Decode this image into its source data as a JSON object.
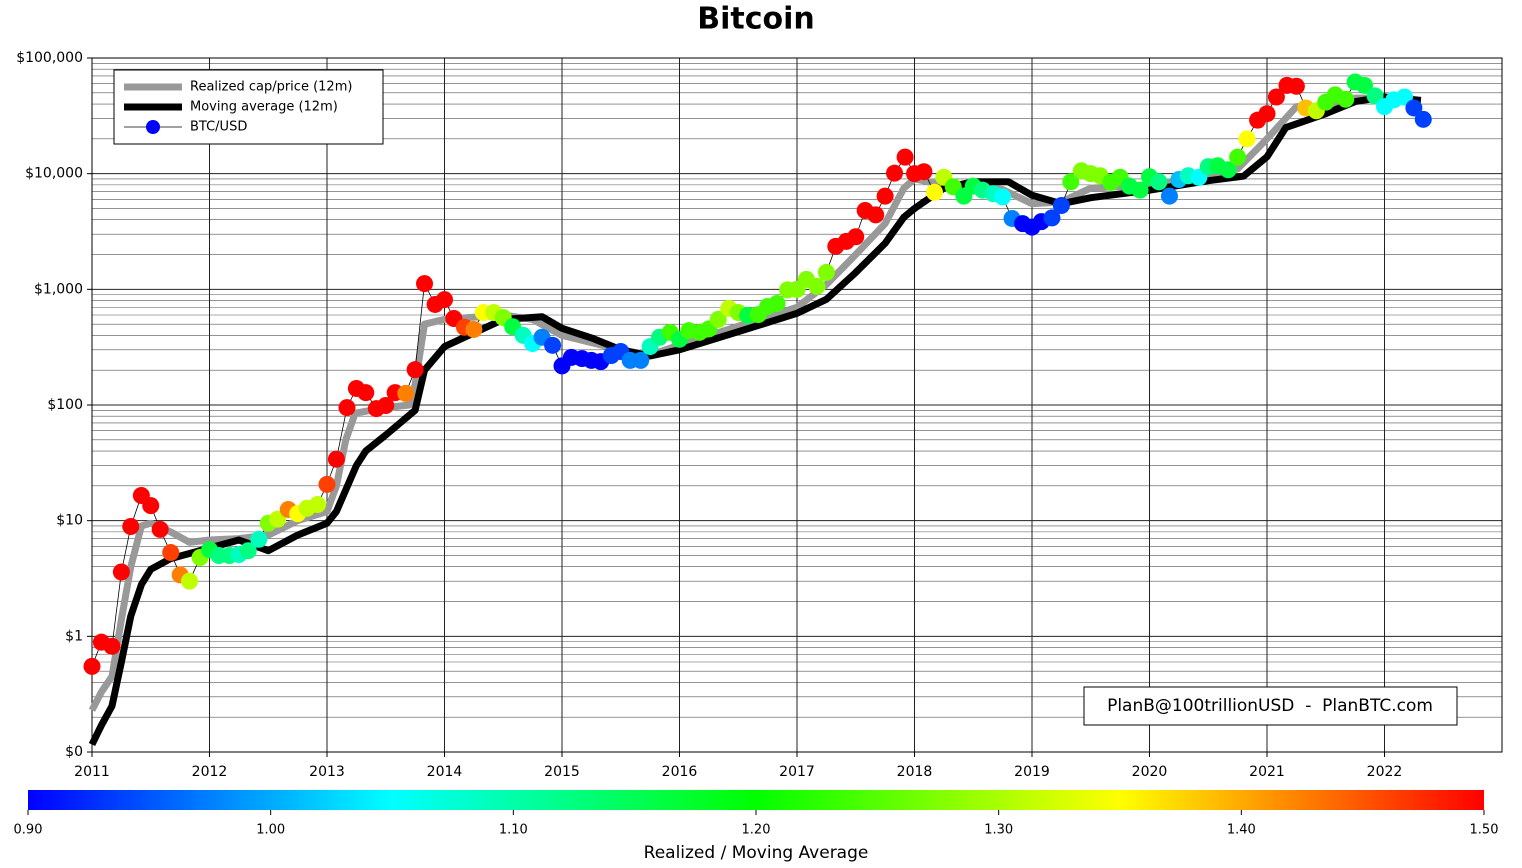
{
  "chart_data": {
    "type": "line",
    "title": "Bitcoin",
    "annotation": "PlanB@100trillionUSD  -  PlanBTC.com",
    "xlim": [
      2011,
      2023
    ],
    "xticks": [
      2011,
      2012,
      2013,
      2014,
      2015,
      2016,
      2017,
      2018,
      2019,
      2020,
      2021,
      2022
    ],
    "ylim": [
      0.1,
      100000
    ],
    "yticks": [
      {
        "value": 0.1,
        "label": "$0"
      },
      {
        "value": 1,
        "label": "$1"
      },
      {
        "value": 10,
        "label": "$10"
      },
      {
        "value": 100,
        "label": "$100"
      },
      {
        "value": 1000,
        "label": "$1,000"
      },
      {
        "value": 10000,
        "label": "$10,000"
      },
      {
        "value": 100000,
        "label": "$100,000"
      }
    ],
    "log_scale": true,
    "grid": true,
    "minor_grid": true,
    "legend": "upper left",
    "series": [
      {
        "name": "Realized cap/price (12m)",
        "type": "line",
        "color": "#999999",
        "x": [
          2011.0,
          2011.08,
          2011.17,
          2011.25,
          2011.33,
          2011.42,
          2011.5,
          2011.67,
          2011.83,
          2012.0,
          2012.25,
          2012.5,
          2012.75,
          2013.0,
          2013.08,
          2013.16,
          2013.24,
          2013.5,
          2013.7,
          2013.75,
          2013.83,
          2014.0,
          2014.5,
          2014.75,
          2015.0,
          2015.5,
          2015.75,
          2016.0,
          2016.5,
          2017.0,
          2017.25,
          2017.5,
          2017.75,
          2017.91,
          2018.0,
          2018.25,
          2018.5,
          2018.75,
          2019.0,
          2019.25,
          2019.5,
          2020.0,
          2020.5,
          2020.75,
          2021.0,
          2021.25,
          2021.5,
          2021.75,
          2022.0,
          2022.31
        ],
        "values": [
          0.23,
          0.33,
          0.45,
          1.4,
          4,
          9,
          9.5,
          8,
          6.5,
          6.8,
          7,
          7.5,
          10,
          12,
          20,
          50,
          85,
          95,
          100,
          150,
          500,
          550,
          600,
          550,
          400,
          300,
          270,
          330,
          480,
          700,
          1100,
          2000,
          3700,
          7500,
          9000,
          8000,
          7800,
          7300,
          5500,
          5700,
          7500,
          8000,
          9500,
          11000,
          20000,
          38000,
          38000,
          45000,
          45000,
          42000
        ]
      },
      {
        "name": "Moving average (12m)",
        "type": "line",
        "color": "#000000",
        "x": [
          2011.0,
          2011.08,
          2011.17,
          2011.25,
          2011.33,
          2011.42,
          2011.5,
          2011.67,
          2011.83,
          2012.0,
          2012.25,
          2012.5,
          2012.75,
          2013.0,
          2013.08,
          2013.25,
          2013.33,
          2013.5,
          2013.75,
          2013.83,
          2014.0,
          2014.25,
          2014.5,
          2014.83,
          2015.0,
          2015.25,
          2015.5,
          2015.75,
          2016.0,
          2016.5,
          2017.0,
          2017.25,
          2017.5,
          2017.75,
          2017.91,
          2018.0,
          2018.25,
          2018.5,
          2018.8,
          2019.0,
          2019.25,
          2019.5,
          2020.0,
          2020.5,
          2020.8,
          2021.0,
          2021.16,
          2021.5,
          2021.75,
          2022.0,
          2022.31
        ],
        "values": [
          0.116,
          0.17,
          0.25,
          0.6,
          1.5,
          2.8,
          3.8,
          4.7,
          5.2,
          5.8,
          6.8,
          5.5,
          7.5,
          9.5,
          12,
          30,
          40,
          55,
          90,
          200,
          320,
          420,
          550,
          580,
          460,
          380,
          300,
          265,
          300,
          430,
          620,
          820,
          1400,
          2500,
          4200,
          5000,
          7500,
          8500,
          8500,
          6500,
          5500,
          6200,
          7200,
          8700,
          9500,
          14000,
          25000,
          33000,
          42000,
          46000,
          43000
        ]
      },
      {
        "name": "BTC/USD",
        "type": "scatter",
        "color": "#0000ff",
        "x": [
          2011.0,
          2011.08,
          2011.17,
          2011.25,
          2011.33,
          2011.42,
          2011.5,
          2011.58,
          2011.67,
          2011.75,
          2011.83,
          2011.92,
          2012.0,
          2012.08,
          2012.17,
          2012.25,
          2012.33,
          2012.42,
          2012.5,
          2012.58,
          2012.67,
          2012.75,
          2012.83,
          2012.92,
          2013.0,
          2013.08,
          2013.17,
          2013.25,
          2013.33,
          2013.42,
          2013.5,
          2013.58,
          2013.67,
          2013.75,
          2013.83,
          2013.92,
          2014.0,
          2014.08,
          2014.17,
          2014.25,
          2014.33,
          2014.42,
          2014.5,
          2014.58,
          2014.67,
          2014.75,
          2014.83,
          2014.92,
          2015.0,
          2015.08,
          2015.17,
          2015.25,
          2015.33,
          2015.42,
          2015.5,
          2015.58,
          2015.67,
          2015.75,
          2015.83,
          2015.92,
          2016.0,
          2016.08,
          2016.17,
          2016.25,
          2016.33,
          2016.42,
          2016.5,
          2016.58,
          2016.67,
          2016.75,
          2016.83,
          2016.92,
          2017.0,
          2017.08,
          2017.17,
          2017.25,
          2017.33,
          2017.42,
          2017.5,
          2017.58,
          2017.67,
          2017.75,
          2017.83,
          2017.92,
          2018.0,
          2018.08,
          2018.17,
          2018.25,
          2018.33,
          2018.42,
          2018.5,
          2018.58,
          2018.67,
          2018.75,
          2018.83,
          2018.92,
          2019.0,
          2019.08,
          2019.17,
          2019.25,
          2019.33,
          2019.42,
          2019.5,
          2019.58,
          2019.67,
          2019.75,
          2019.83,
          2019.92,
          2020.0,
          2020.08,
          2020.17,
          2020.25,
          2020.33,
          2020.42,
          2020.5,
          2020.58,
          2020.67,
          2020.75,
          2020.83,
          2020.92,
          2021.0,
          2021.08,
          2021.17,
          2021.25,
          2021.33,
          2021.42,
          2021.5,
          2021.58,
          2021.67,
          2021.75,
          2021.83,
          2021.92,
          2022.0,
          2022.08,
          2022.17,
          2022.25,
          2022.33
        ],
        "values": [
          0.55,
          0.89,
          0.82,
          3.6,
          8.9,
          16.5,
          13.5,
          8.4,
          5.3,
          3.4,
          3.0,
          4.8,
          5.6,
          5.0,
          5.0,
          5.1,
          5.5,
          6.9,
          9.5,
          10.3,
          12.5,
          11.5,
          12.8,
          13.8,
          20.6,
          34,
          95,
          139,
          128,
          93,
          99,
          128,
          126,
          202,
          1120,
          740,
          815,
          560,
          470,
          450,
          630,
          630,
          570,
          475,
          400,
          340,
          385,
          328,
          218,
          258,
          252,
          243,
          237,
          268,
          290,
          243,
          243,
          320,
          385,
          425,
          370,
          440,
          425,
          455,
          550,
          685,
          630,
          595,
          605,
          710,
          755,
          990,
          1000,
          1220,
          1060,
          1400,
          2350,
          2600,
          2850,
          4800,
          4400,
          6400,
          10100,
          13900,
          10000,
          10400,
          6900,
          9300,
          7700,
          6400,
          7800,
          7200,
          6700,
          6300,
          4100,
          3700,
          3450,
          3850,
          4150,
          5300,
          8500,
          10600,
          10000,
          9600,
          8400,
          9300,
          7800,
          7200,
          9400,
          8500,
          6400,
          8900,
          9600,
          9300,
          11500,
          11700,
          10800,
          13900,
          20000,
          29000,
          33000,
          46000,
          58000,
          57000,
          37000,
          35000,
          41500,
          48000,
          44000,
          62000,
          58000,
          47000,
          38000,
          43500,
          46000,
          37000,
          29500
        ],
        "colors": [
          "#ff0000",
          "#ff0000",
          "#ff0000",
          "#ff0000",
          "#ff0000",
          "#ff0000",
          "#ff0000",
          "#ff0000",
          "#ff4000",
          "#ff8000",
          "#bfff00",
          "#80ff00",
          "#00ff40",
          "#00ff80",
          "#00ff80",
          "#00ffbf",
          "#00ff80",
          "#00ffbf",
          "#80ff00",
          "#bfff00",
          "#ff8000",
          "#ffff00",
          "#bfff00",
          "#bfff00",
          "#ff4000",
          "#ff0000",
          "#ff0000",
          "#ff0000",
          "#ff0000",
          "#ff0000",
          "#ff0000",
          "#ff0000",
          "#ff8000",
          "#ff0000",
          "#ff0000",
          "#ff0000",
          "#ff0000",
          "#ff0000",
          "#ff4000",
          "#ff8000",
          "#ffff00",
          "#bfff00",
          "#80ff00",
          "#00ff40",
          "#00ffbf",
          "#00ffff",
          "#0080ff",
          "#0040ff",
          "#0000ff",
          "#0000ff",
          "#0000ff",
          "#0000ff",
          "#0000ff",
          "#0040ff",
          "#0040ff",
          "#0080ff",
          "#0080ff",
          "#00ffbf",
          "#00ff80",
          "#40ff00",
          "#00ff40",
          "#40ff00",
          "#40ff00",
          "#40ff00",
          "#80ff00",
          "#bfff00",
          "#80ff00",
          "#00ff40",
          "#40ff00",
          "#40ff00",
          "#40ff00",
          "#80ff00",
          "#80ff00",
          "#80ff00",
          "#80ff00",
          "#80ff00",
          "#ff0000",
          "#ff0000",
          "#ff0000",
          "#ff0000",
          "#ff0000",
          "#ff0000",
          "#ff0000",
          "#ff0000",
          "#ff0000",
          "#ff0000",
          "#ffff00",
          "#bfff00",
          "#40ff00",
          "#00ff40",
          "#00ff40",
          "#00ff80",
          "#00ffbf",
          "#00ffff",
          "#0080ff",
          "#0000ff",
          "#0000ff",
          "#0000ff",
          "#0040ff",
          "#0040ff",
          "#40ff00",
          "#80ff00",
          "#80ff00",
          "#80ff00",
          "#40ff00",
          "#40ff00",
          "#00ff40",
          "#00ff40",
          "#00ff40",
          "#00ff80",
          "#0080ff",
          "#00bfff",
          "#00ffbf",
          "#00ffff",
          "#00ff80",
          "#00ff40",
          "#00ff40",
          "#40ff00",
          "#ffff00",
          "#ff0000",
          "#ff0000",
          "#ff0000",
          "#ff0000",
          "#ff0000",
          "#ffbf00",
          "#bfff00",
          "#40ff00",
          "#40ff00",
          "#40ff00",
          "#00ff40",
          "#00ff40",
          "#00ff80",
          "#00ffff",
          "#00ffff",
          "#00ffff",
          "#0040ff",
          "#0040ff"
        ]
      }
    ],
    "colorbar": {
      "label": "Realized / Moving Average",
      "lim": [
        0.9,
        1.5
      ],
      "ticks": [
        {
          "value": 0.9,
          "label": "0.90"
        },
        {
          "value": 1.0,
          "label": "1.00"
        },
        {
          "value": 1.1,
          "label": "1.10"
        },
        {
          "value": 1.2,
          "label": "1.20"
        },
        {
          "value": 1.3,
          "label": "1.30"
        },
        {
          "value": 1.4,
          "label": "1.40"
        },
        {
          "value": 1.5,
          "label": "1.50"
        }
      ],
      "colors": [
        "#0000ff",
        "#00ffff",
        "#00ff00",
        "#ffff00",
        "#ff0000"
      ]
    }
  }
}
